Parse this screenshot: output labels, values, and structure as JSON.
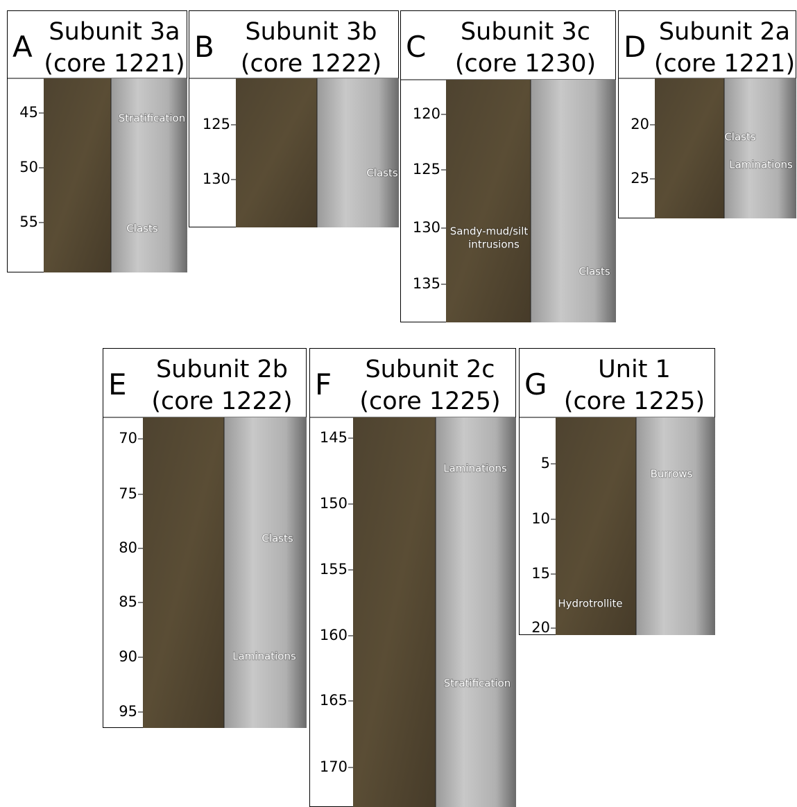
{
  "panels": [
    {
      "letter": "A",
      "title": "Subunit 3a",
      "subtitle": "(core 1221)",
      "depths": [
        45,
        50,
        55
      ],
      "annotations": [
        "Stratification",
        "Clasts"
      ]
    },
    {
      "letter": "B",
      "title": "Subunit 3b",
      "subtitle": "(core 1222)",
      "depths": [
        125,
        130
      ],
      "annotations": [
        "Clasts"
      ]
    },
    {
      "letter": "C",
      "title": "Subunit 3c",
      "subtitle": "(core 1230)",
      "depths": [
        120,
        125,
        130,
        135
      ],
      "annotations": [
        "Sandy-mud/silt",
        "intrusions",
        "Clasts"
      ]
    },
    {
      "letter": "D",
      "title": "Subunit 2a",
      "subtitle": "(core 1221)",
      "depths": [
        20,
        25
      ],
      "annotations": [
        "Clasts",
        "Laminations"
      ]
    },
    {
      "letter": "E",
      "title": "Subunit 2b",
      "subtitle": "(core 1222)",
      "depths": [
        70,
        75,
        80,
        85,
        90,
        95
      ],
      "annotations": [
        "Clasts",
        "Laminations"
      ]
    },
    {
      "letter": "F",
      "title": "Subunit 2c",
      "subtitle": "(core 1225)",
      "depths": [
        145,
        150,
        155,
        160,
        165,
        170
      ],
      "annotations": [
        "Laminations",
        "Stratification"
      ]
    },
    {
      "letter": "G",
      "title": "Unit 1",
      "subtitle": "(core 1225)",
      "depths": [
        5,
        10,
        15,
        20
      ],
      "annotations": [
        "Burrows",
        "Hydrotrollite"
      ]
    }
  ]
}
